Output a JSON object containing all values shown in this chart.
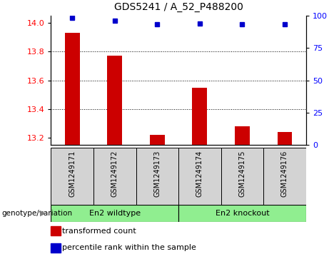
{
  "title": "GDS5241 / A_52_P488200",
  "samples": [
    "GSM1249171",
    "GSM1249172",
    "GSM1249173",
    "GSM1249174",
    "GSM1249175",
    "GSM1249176"
  ],
  "bar_values": [
    13.93,
    13.77,
    13.22,
    13.55,
    13.28,
    13.24
  ],
  "percentile_values": [
    98,
    96,
    93,
    94,
    93,
    93
  ],
  "bar_color": "#cc0000",
  "dot_color": "#0000cc",
  "ylim_left": [
    13.15,
    14.05
  ],
  "ylim_right": [
    0,
    100
  ],
  "yticks_left": [
    13.2,
    13.4,
    13.6,
    13.8,
    14.0
  ],
  "yticks_right": [
    0,
    25,
    50,
    75,
    100
  ],
  "group_row_label": "genotype/variation",
  "legend_red_label": "transformed count",
  "legend_blue_label": "percentile rank within the sample",
  "bar_width": 0.35,
  "tick_area_bg": "#d3d3d3",
  "group_bg_color": "#90ee90"
}
